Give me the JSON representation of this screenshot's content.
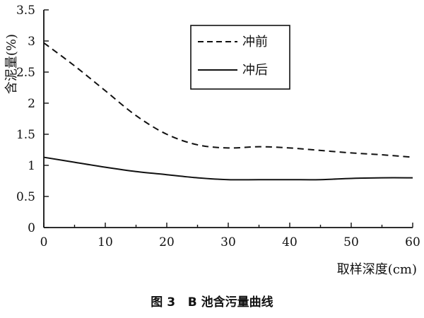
{
  "chart_data": {
    "type": "line",
    "ylabel": "含泥量(%)",
    "xlabel": "取样深度(cm)",
    "caption": "图 3   B 池含污量曲线",
    "xlim": [
      0,
      60
    ],
    "ylim": [
      0,
      3.5
    ],
    "xticks": [
      0,
      10,
      20,
      30,
      40,
      50,
      60
    ],
    "xtick_labels": [
      "0",
      "10",
      "20",
      "30",
      "40",
      "50",
      "60"
    ],
    "yticks": [
      0,
      0.5,
      1,
      1.5,
      2,
      2.5,
      3,
      3.5
    ],
    "ytick_labels": [
      "0",
      "0.5",
      "1",
      "1.5",
      "2",
      "2.5",
      "3",
      "3.5"
    ],
    "grid": false,
    "legend_position": "top-right",
    "series": [
      {
        "name": "冲前",
        "style": "dashed",
        "color": "#111111",
        "x": [
          0,
          5,
          10,
          15,
          20,
          25,
          30,
          35,
          40,
          45,
          50,
          55,
          60
        ],
        "y": [
          2.97,
          2.6,
          2.2,
          1.8,
          1.5,
          1.33,
          1.28,
          1.3,
          1.28,
          1.24,
          1.2,
          1.17,
          1.13
        ]
      },
      {
        "name": "冲后",
        "style": "solid",
        "color": "#111111",
        "x": [
          0,
          5,
          10,
          15,
          20,
          25,
          30,
          35,
          40,
          45,
          50,
          55,
          60
        ],
        "y": [
          1.13,
          1.05,
          0.97,
          0.9,
          0.85,
          0.8,
          0.77,
          0.77,
          0.77,
          0.77,
          0.79,
          0.8,
          0.8
        ]
      }
    ]
  }
}
